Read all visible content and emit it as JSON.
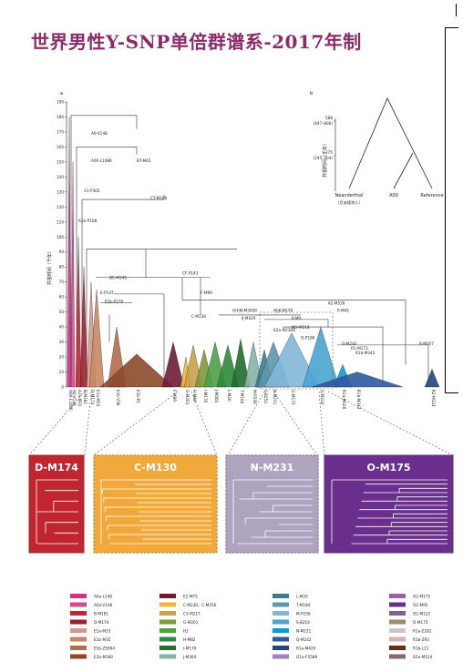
{
  "title": "世界男性Y-SNP单倍群谱系-2017年制",
  "chart_data": [
    {
      "type": "tree",
      "panel": "a",
      "ylabel": "共祖时间（千年）",
      "ylim": [
        0,
        190
      ],
      "yticks": [
        0,
        10,
        20,
        30,
        40,
        50,
        60,
        70,
        80,
        90,
        100,
        110,
        120,
        130,
        140,
        150,
        160,
        170,
        180,
        190
      ],
      "node_labels": [
        "A00-L1086",
        "A0-V148",
        "A1-P305",
        "A1b-P108",
        "BT-M42",
        "CT-M168",
        "DE-M145",
        "CF-P143",
        "E-P147",
        "E1b-P179",
        "F-M89",
        "GHIJK-M3658",
        "HIJK-M578",
        "IJ-M429",
        "K-M9",
        "K2a-M2308",
        "NO-M214",
        "K2-M526",
        "O-P186",
        "P-M45",
        "O-M242",
        "R1-M173",
        "R1b-M343",
        "R-M207",
        "C-M130"
      ],
      "tip_labels": [
        "A00-L1086",
        "A0-V148",
        "A1a-M31",
        "B-M181",
        "D-M174",
        "E1a-M33",
        "E1b-V38",
        "E1b-P2",
        "F-M89",
        "G-M201",
        "H-M69",
        "I-M170",
        "J-M304",
        "L-M20",
        "T-M184",
        "M-P256",
        "S-B254",
        "N-M231",
        "O-M175",
        "Q-M242",
        "R1a-M420",
        "R1b-M343",
        "R2-M124"
      ]
    },
    {
      "type": "tree",
      "panel": "b",
      "ylabel": "共祖时间（千年）",
      "values": [
        {
          "node": "588",
          "range": "(447–806)"
        },
        {
          "node": "275",
          "range": "(245–304)"
        }
      ],
      "tips": [
        "Neanderthal",
        "A00",
        "Reference"
      ],
      "tip_note": "（尼安德特人）"
    }
  ],
  "panels": [
    {
      "name": "D-M174",
      "color": "#c0262f",
      "border": "#c0262f"
    },
    {
      "name": "C-M130",
      "color": "#f2a93b",
      "border": "#e8c85a"
    },
    {
      "name": "N-M231",
      "color": "#aea4c0",
      "border": "#aea4c0"
    },
    {
      "name": "O-M175",
      "color": "#6a2e8c",
      "border": "#6a2e8c"
    }
  ],
  "legend": [
    [
      {
        "label": "A0a-L148",
        "color": "#d62f86"
      },
      {
        "label": "A0a-V148",
        "color": "#d34a98"
      },
      {
        "label": "B-M181",
        "color": "#c0262f"
      },
      {
        "label": "D-M174",
        "color": "#9b2233"
      },
      {
        "label": "E1a-M33",
        "color": "#d29b8e"
      },
      {
        "label": "E1b-M35",
        "color": "#c9875f"
      },
      {
        "label": "E1b-Z5994",
        "color": "#b26d49"
      },
      {
        "label": "E1b-M180",
        "color": "#8b4a2b"
      }
    ],
    [
      {
        "label": "E2-M75",
        "color": "#6e1d36"
      },
      {
        "label": "C-M130、C-M356",
        "color": "#f0b33e"
      },
      {
        "label": "C3-M217",
        "color": "#c9a14a"
      },
      {
        "label": "G-M201",
        "color": "#7d9a3a"
      },
      {
        "label": "H2",
        "color": "#4ca04a"
      },
      {
        "label": "H-M82",
        "color": "#2e8a3c"
      },
      {
        "label": "I-M170",
        "color": "#1f6e2c"
      },
      {
        "label": "J-M304",
        "color": "#86b2a8"
      }
    ],
    [
      {
        "label": "L-M20",
        "color": "#3b7d8c"
      },
      {
        "label": "T-M184",
        "color": "#5e97b0"
      },
      {
        "label": "M-P256",
        "color": "#82b7d6"
      },
      {
        "label": "S-B254",
        "color": "#4aa4cf"
      },
      {
        "label": "N-M231",
        "color": "#0f9ad4"
      },
      {
        "label": "Q-M242",
        "color": "#2f5a9e"
      },
      {
        "label": "R1a-M420",
        "color": "#25447c"
      },
      {
        "label": "O1a-F5589",
        "color": "#9d84b8"
      }
    ],
    [
      {
        "label": "O2-M175",
        "color": "#9c5ea8"
      },
      {
        "label": "O2-M95",
        "color": "#6a2e8c"
      },
      {
        "label": "O2-M122",
        "color": "#7a6196"
      },
      {
        "label": "O-M175",
        "color": "#a08a6e"
      },
      {
        "label": "R1a-Z282",
        "color": "#c8c8c8"
      },
      {
        "label": "R1b-Z93",
        "color": "#d7b3a8"
      },
      {
        "label": "R1b-L11",
        "color": "#6b2a1a"
      },
      {
        "label": "R2a-M124",
        "color": "#7f6b70"
      }
    ]
  ]
}
